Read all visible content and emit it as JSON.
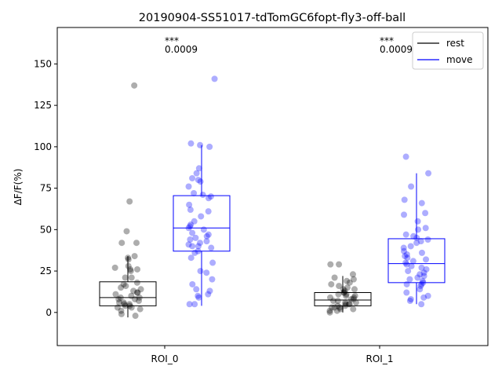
{
  "chart_data": {
    "type": "box-strip",
    "title": "20190904-SS51017-tdTomGC6fopt-fly3-off-ball",
    "ylabel": "ΔF/F(%)",
    "xlabel": "",
    "categories": [
      "ROI_0",
      "ROI_1"
    ],
    "ylim": [
      -20,
      172
    ],
    "yticks": [
      0,
      25,
      50,
      75,
      100,
      125,
      150
    ],
    "legend": {
      "placement": "top-right",
      "entries": [
        {
          "name": "rest",
          "color": "#000000"
        },
        {
          "name": "move",
          "color": "#0000ff"
        }
      ]
    },
    "annotations": [
      {
        "category": "ROI_0",
        "stars": "***",
        "pvalue": "0.0009"
      },
      {
        "category": "ROI_1",
        "stars": "***",
        "pvalue": "0.0009"
      }
    ],
    "series": [
      {
        "name": "rest",
        "color": "#000000",
        "boxes": [
          {
            "category": "ROI_0",
            "q1": 4,
            "median": 9,
            "q3": 18.5,
            "whisker_low": -3,
            "whisker_high": 34
          },
          {
            "category": "ROI_1",
            "q1": 4,
            "median": 7.5,
            "q3": 12,
            "whisker_low": 0,
            "whisker_high": 22
          }
        ],
        "points": [
          {
            "category": "ROI_0",
            "values": [
              137,
              67,
              49,
              42,
              42,
              34,
              33,
              32,
              28,
              27,
              26,
              25,
              21,
              18,
              17,
              16,
              15,
              14,
              13,
              12,
              12,
              11,
              10,
              9,
              9,
              8,
              8,
              7,
              6,
              6,
              5,
              5,
              4,
              4,
              3,
              3,
              2,
              1,
              -1,
              -2,
              26,
              21
            ]
          },
          {
            "category": "ROI_1",
            "values": [
              29,
              29,
              23,
              21,
              20,
              19,
              18,
              17,
              15,
              14,
              13,
              12,
              11,
              10,
              10,
              9,
              9,
              8,
              8,
              7,
              7,
              6,
              6,
              5,
              5,
              5,
              4,
              4,
              3,
              3,
              3,
              2,
              2,
              1,
              1,
              0,
              12,
              14,
              16,
              11
            ]
          }
        ]
      },
      {
        "name": "move",
        "color": "#0000ff",
        "boxes": [
          {
            "category": "ROI_0",
            "q1": 37,
            "median": 51,
            "q3": 70.5,
            "whisker_low": 4,
            "whisker_high": 101
          },
          {
            "category": "ROI_1",
            "q1": 18,
            "median": 29.5,
            "q3": 44.5,
            "whisker_low": 5,
            "whisker_high": 84
          }
        ],
        "points": [
          {
            "category": "ROI_0",
            "values": [
              141,
              102,
              101,
              100,
              87,
              84,
              81,
              80,
              79,
              76,
              72,
              71,
              70,
              69,
              65,
              62,
              61,
              58,
              55,
              53,
              52,
              51,
              50,
              48,
              47,
              46,
              45,
              44,
              43,
              42,
              41,
              40,
              40,
              39,
              37,
              36,
              33,
              30,
              25,
              24,
              20,
              17,
              14,
              13,
              11,
              10,
              9,
              5,
              5
            ]
          },
          {
            "category": "ROI_1",
            "values": [
              94,
              84,
              76,
              68,
              66,
              60,
              59,
              55,
              51,
              50,
              47,
              46,
              45,
              44,
              43,
              42,
              40,
              39,
              37,
              36,
              35,
              34,
              32,
              30,
              29,
              27,
              26,
              25,
              24,
              22,
              21,
              20,
              19,
              18,
              17,
              17,
              16,
              14,
              12,
              10,
              9,
              8,
              7,
              5,
              23,
              28,
              31,
              33
            ]
          }
        ]
      }
    ]
  }
}
